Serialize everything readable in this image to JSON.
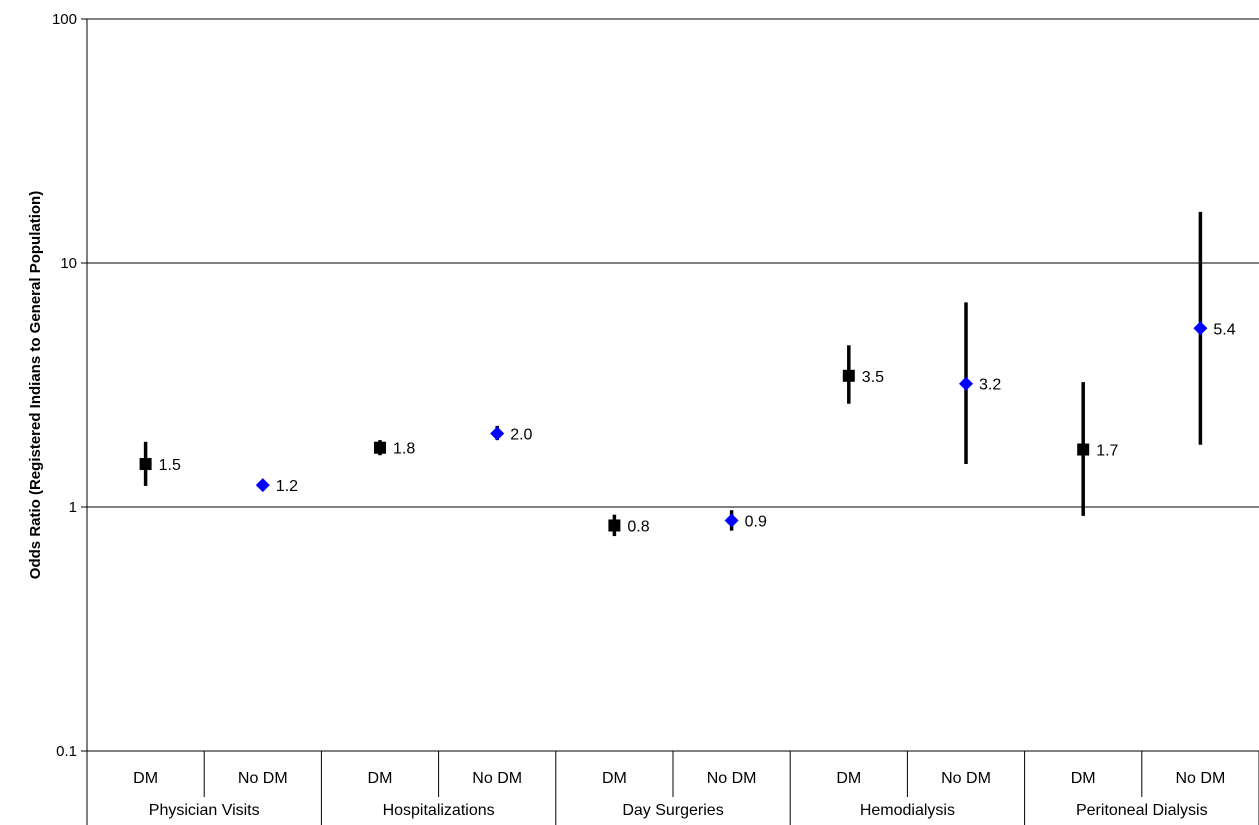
{
  "chart_data": {
    "type": "scatter",
    "title": "",
    "ylabel": "Odds Ratio (Registered Indians to General Population)",
    "xlabel": "",
    "yscale": "log",
    "ylim": [
      0.1,
      100
    ],
    "yticks": [
      {
        "value": 0.1,
        "label": "0.1"
      },
      {
        "value": 1,
        "label": "1"
      },
      {
        "value": 10,
        "label": "10"
      },
      {
        "value": 100,
        "label": "100"
      }
    ],
    "grid": true,
    "legend": "none",
    "groups": [
      "Physician Visits",
      "Hospitalizations",
      "Day Surgeries",
      "Hemodialysis",
      "Peritoneal Dialysis"
    ],
    "categories": [
      "DM",
      "No DM",
      "DM",
      "No DM",
      "DM",
      "No DM",
      "DM",
      "No DM",
      "DM",
      "No DM"
    ],
    "colors": {
      "DM": "#000000",
      "No DM": "#0000ff"
    },
    "points": [
      {
        "group": "Physician Visits",
        "category": "DM",
        "value": 1.5,
        "label": "1.5",
        "low": 1.22,
        "high": 1.85,
        "marker": "square"
      },
      {
        "group": "Physician Visits",
        "category": "No DM",
        "value": 1.23,
        "label": "1.2",
        "low": 1.2,
        "high": 1.27,
        "marker": "diamond"
      },
      {
        "group": "Hospitalizations",
        "category": "DM",
        "value": 1.75,
        "label": "1.8",
        "low": 1.63,
        "high": 1.88,
        "marker": "square"
      },
      {
        "group": "Hospitalizations",
        "category": "No DM",
        "value": 2.0,
        "label": "2.0",
        "low": 1.88,
        "high": 2.15,
        "marker": "diamond"
      },
      {
        "group": "Day Surgeries",
        "category": "DM",
        "value": 0.84,
        "label": "0.8",
        "low": 0.76,
        "high": 0.93,
        "marker": "square"
      },
      {
        "group": "Day Surgeries",
        "category": "No DM",
        "value": 0.88,
        "label": "0.9",
        "low": 0.8,
        "high": 0.97,
        "marker": "diamond"
      },
      {
        "group": "Hemodialysis",
        "category": "DM",
        "value": 3.45,
        "label": "3.5",
        "low": 2.65,
        "high": 4.6,
        "marker": "square"
      },
      {
        "group": "Hemodialysis",
        "category": "No DM",
        "value": 3.2,
        "label": "3.2",
        "low": 1.5,
        "high": 6.9,
        "marker": "diamond"
      },
      {
        "group": "Peritoneal Dialysis",
        "category": "DM",
        "value": 1.72,
        "label": "1.7",
        "low": 0.92,
        "high": 3.25,
        "marker": "square"
      },
      {
        "group": "Peritoneal Dialysis",
        "category": "No DM",
        "value": 5.4,
        "label": "5.4",
        "low": 1.8,
        "high": 16.2,
        "marker": "diamond"
      }
    ]
  }
}
